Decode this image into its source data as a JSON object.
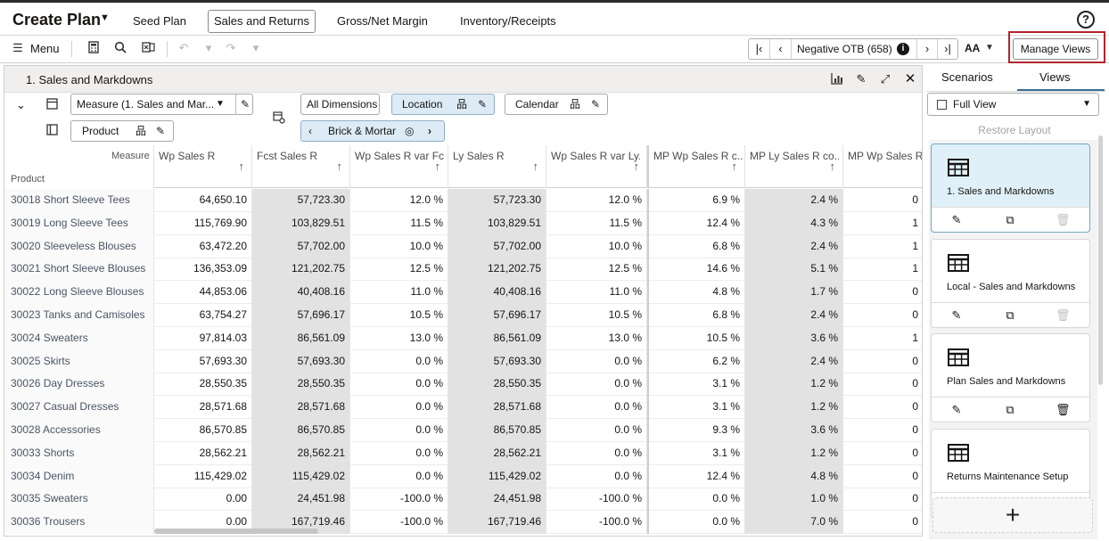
{
  "header": {
    "plan_title": "Create Plan",
    "tabs": [
      {
        "label": "Seed Plan"
      },
      {
        "label": "Sales and Returns"
      },
      {
        "label": "Gross/Net Margin"
      },
      {
        "label": "Inventory/Receipts"
      }
    ],
    "help": "?"
  },
  "toolbar": {
    "menu_label": "Menu",
    "otb_label": "Negative OTB (658)",
    "font_size_label": "AA",
    "manage_views_label": "Manage Views"
  },
  "panel": {
    "title": "1. Sales and Markdowns",
    "measure_select": "Measure (1. Sales and Mar...",
    "all_dimensions": "All Dimensions",
    "location": "Location",
    "calendar": "Calendar",
    "product": "Product",
    "brick_mortar": "Brick & Mortar",
    "row_header_measure": "Measure",
    "row_header_product": "Product"
  },
  "table": {
    "columns": [
      "Wp Sales R",
      "Fcst Sales R",
      "Wp Sales R var Fc...",
      "Ly Sales R",
      "Wp Sales R var Ly...",
      "MP Wp Sales R c...",
      "MP Ly Sales R co...",
      "MP Wp Sales R"
    ],
    "rows": [
      {
        "name": "30018 Short Sleeve Tees",
        "v": [
          "64,650.10",
          "57,723.30",
          "12.0 %",
          "57,723.30",
          "12.0 %",
          "6.9 %",
          "2.4 %",
          "0"
        ]
      },
      {
        "name": "30019 Long Sleeve Tees",
        "v": [
          "115,769.90",
          "103,829.51",
          "11.5 %",
          "103,829.51",
          "11.5 %",
          "12.4 %",
          "4.3 %",
          "1"
        ]
      },
      {
        "name": "30020 Sleeveless Blouses",
        "v": [
          "63,472.20",
          "57,702.00",
          "10.0 %",
          "57,702.00",
          "10.0 %",
          "6.8 %",
          "2.4 %",
          "1"
        ]
      },
      {
        "name": "30021 Short Sleeve Blouses",
        "v": [
          "136,353.09",
          "121,202.75",
          "12.5 %",
          "121,202.75",
          "12.5 %",
          "14.6 %",
          "5.1 %",
          "1"
        ]
      },
      {
        "name": "30022 Long Sleeve Blouses",
        "v": [
          "44,853.06",
          "40,408.16",
          "11.0 %",
          "40,408.16",
          "11.0 %",
          "4.8 %",
          "1.7 %",
          "0"
        ]
      },
      {
        "name": "30023 Tanks and Camisoles",
        "v": [
          "63,754.27",
          "57,696.17",
          "10.5 %",
          "57,696.17",
          "10.5 %",
          "6.8 %",
          "2.4 %",
          "0"
        ]
      },
      {
        "name": "30024 Sweaters",
        "v": [
          "97,814.03",
          "86,561.09",
          "13.0 %",
          "86,561.09",
          "13.0 %",
          "10.5 %",
          "3.6 %",
          "1"
        ]
      },
      {
        "name": "30025 Skirts",
        "v": [
          "57,693.30",
          "57,693.30",
          "0.0 %",
          "57,693.30",
          "0.0 %",
          "6.2 %",
          "2.4 %",
          "0"
        ]
      },
      {
        "name": "30026 Day Dresses",
        "v": [
          "28,550.35",
          "28,550.35",
          "0.0 %",
          "28,550.35",
          "0.0 %",
          "3.1 %",
          "1.2 %",
          "0"
        ]
      },
      {
        "name": "30027 Casual Dresses",
        "v": [
          "28,571.68",
          "28,571.68",
          "0.0 %",
          "28,571.68",
          "0.0 %",
          "3.1 %",
          "1.2 %",
          "0"
        ]
      },
      {
        "name": "30028 Accessories",
        "v": [
          "86,570.85",
          "86,570.85",
          "0.0 %",
          "86,570.85",
          "0.0 %",
          "9.3 %",
          "3.6 %",
          "0"
        ]
      },
      {
        "name": "30033 Shorts",
        "v": [
          "28,562.21",
          "28,562.21",
          "0.0 %",
          "28,562.21",
          "0.0 %",
          "3.1 %",
          "1.2 %",
          "0"
        ]
      },
      {
        "name": "30034 Denim",
        "v": [
          "115,429.02",
          "115,429.02",
          "0.0 %",
          "115,429.02",
          "0.0 %",
          "12.4 %",
          "4.8 %",
          "0"
        ]
      },
      {
        "name": "30035 Sweaters",
        "v": [
          "0.00",
          "24,451.98",
          "-100.0 %",
          "24,451.98",
          "-100.0 %",
          "0.0 %",
          "1.0 %",
          "0"
        ]
      },
      {
        "name": "30036 Trousers",
        "v": [
          "0.00",
          "167,719.46",
          "-100.0 %",
          "167,719.46",
          "-100.0 %",
          "0.0 %",
          "7.0 %",
          "0"
        ]
      }
    ]
  },
  "sidebar": {
    "tabs": [
      {
        "label": "Scenarios"
      },
      {
        "label": "Views"
      }
    ],
    "active_tab": "Views",
    "full_view_label": "Full View",
    "restore_layout": "Restore Layout",
    "views": [
      {
        "label": "1. Sales and Markdowns",
        "selected": true,
        "delete_enabled": false
      },
      {
        "label": "Local - Sales and Markdowns",
        "selected": false,
        "delete_enabled": false
      },
      {
        "label": "Plan Sales and Markdowns",
        "selected": false,
        "delete_enabled": true
      },
      {
        "label": "Returns Maintenance Setup",
        "selected": false,
        "delete_enabled": true
      }
    ],
    "add_label": "+"
  },
  "colors": {
    "accent": "#3a6f96",
    "highlight_border": "#b1252b",
    "selected_card": "#dff0f8",
    "gray_column": "#e2e2e2"
  }
}
